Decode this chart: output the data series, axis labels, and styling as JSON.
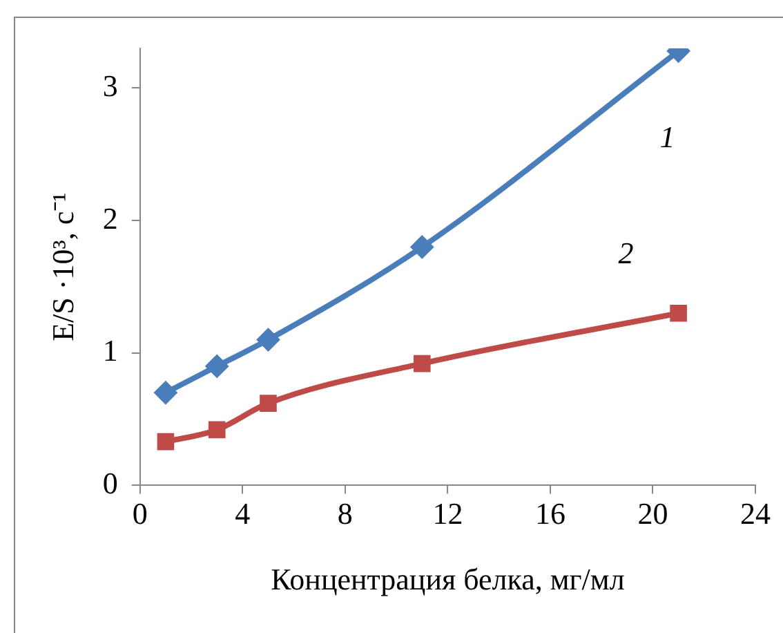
{
  "chart_data": {
    "type": "line",
    "xlabel": "Концентрация белка, мг/мл",
    "ylabel": "E/S ·10³, с⁻¹",
    "xlim": [
      0,
      24
    ],
    "xticks": [
      0,
      4,
      8,
      12,
      16,
      20,
      24
    ],
    "ylim": [
      0,
      3.3
    ],
    "yticks": [
      0,
      1,
      2,
      3
    ],
    "grid": false,
    "legend": false,
    "series": [
      {
        "name": "1",
        "color": "#4a7ebb",
        "marker": "diamond",
        "x": [
          1,
          3,
          5,
          11,
          21
        ],
        "values": [
          0.7,
          0.9,
          1.1,
          1.8,
          3.28
        ]
      },
      {
        "name": "2",
        "color": "#be4b48",
        "marker": "square",
        "x": [
          1,
          3,
          5,
          11,
          21
        ],
        "values": [
          0.33,
          0.42,
          0.62,
          0.92,
          1.3
        ]
      }
    ]
  }
}
